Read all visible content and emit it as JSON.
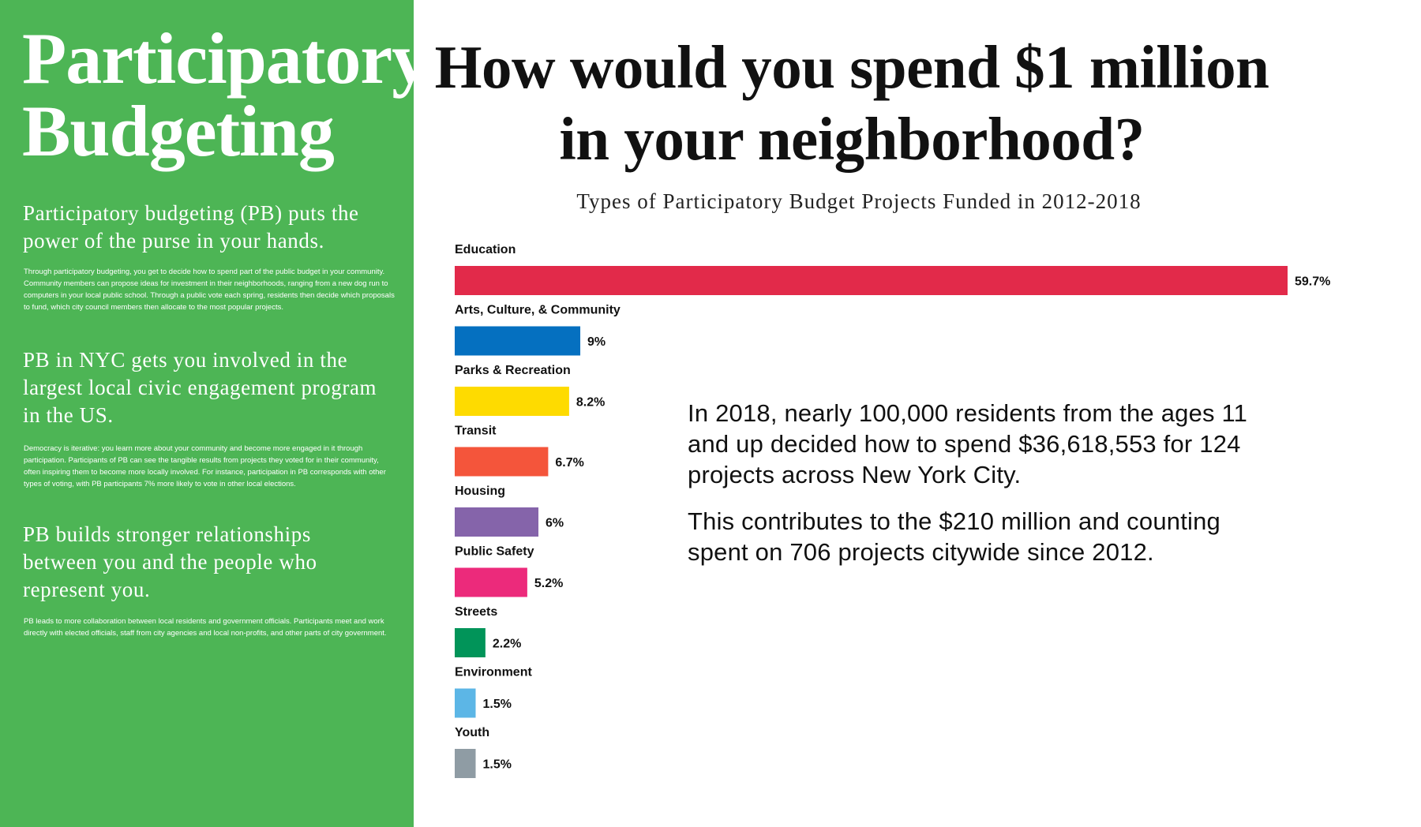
{
  "sidebar": {
    "brand_line1": "Participatory",
    "brand_line2": "Budgeting",
    "sections": [
      {
        "heading": "Participatory budgeting (PB) puts the power of the purse in your hands.",
        "body": "Through participatory budgeting, you get to decide how to spend part of the public budget in your community. Community members can propose ideas for investment in their neighborhoods, ranging from a new dog run to computers in your local public school. Through a public vote each spring, residents then decide which proposals to fund, which city council members then allocate to the most popular projects."
      },
      {
        "heading": "PB in NYC gets you involved in the largest local civic engagement program in the US.",
        "body": "Democracy is iterative: you learn more about your community and become more engaged in it through participation. Participants of PB can see the tangible results from projects they voted for in their community, often inspiring them to become more locally involved. For instance, participation in PB corresponds with other types of voting, with PB participants 7% more likely to vote in other local elections."
      },
      {
        "heading": "PB builds stronger relationships between you and the people who represent you.",
        "body": "PB leads to more collaboration between local residents and government officials. Participants meet and work directly with elected officials, staff from city agencies and local non-profits, and other parts of city government."
      }
    ]
  },
  "header": {
    "title_line1": "How would you spend $1 million",
    "title_line2": "in your neighborhood?"
  },
  "stats": {
    "paragraph1": "In 2018, nearly 100,000 residents from the ages 11 and up decided how to spend $36,618,553 for 124 projects across New York City.",
    "paragraph2": "This contributes to the $210 million and counting spent on 706 projects citywide since 2012."
  },
  "chart_data": {
    "type": "bar",
    "orientation": "horizontal",
    "title": "Types of Participatory Budget Projects Funded in 2012-2018",
    "categories": [
      "Education",
      "Arts, Culture, & Community",
      "Parks & Recreation",
      "Transit",
      "Housing",
      "Public Safety",
      "Streets",
      "Environment",
      "Youth"
    ],
    "values": [
      59.7,
      9,
      8.2,
      6.7,
      6,
      5.2,
      2.2,
      1.5,
      1.5
    ],
    "value_labels": [
      "59.7%",
      "9%",
      "8.2%",
      "6.7%",
      "6%",
      "5.2%",
      "2.2%",
      "1.5%",
      "1.5%"
    ],
    "colors": [
      "#e22a4a",
      "#0570c0",
      "#fedb00",
      "#f4553b",
      "#8564aa",
      "#ec2a7b",
      "#019459",
      "#5cb6e6",
      "#8f9ca4"
    ],
    "unit": "%",
    "xlim": [
      0,
      59.7
    ],
    "grid": false,
    "legend": "none"
  }
}
